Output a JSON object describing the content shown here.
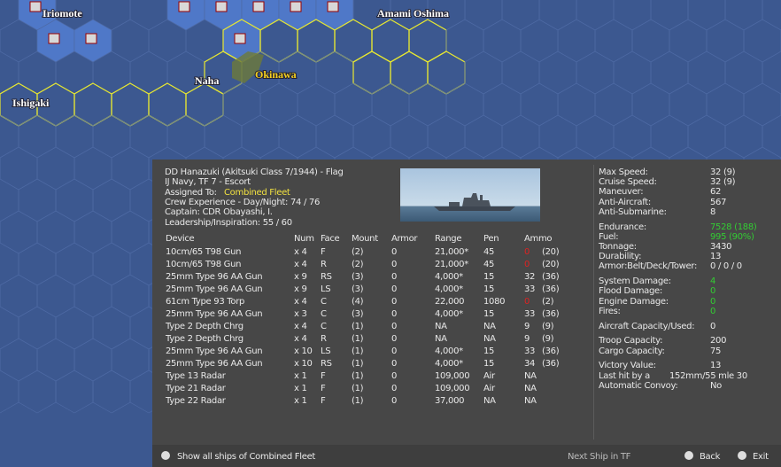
{
  "map": {
    "places": [
      "Iriomote",
      "Amami Oshima",
      "Naha",
      "Okinawa",
      "Ishigaki"
    ]
  },
  "ship": {
    "lines": [
      "DD Hanazuki (Akitsuki Class 7/1944)  - Flag",
      "IJ Navy, TF 7 - Escort"
    ],
    "assigned_label": "Assigned To:",
    "assigned_value": "Combined Fleet",
    "more_lines": [
      "Crew Experience - Day/Night: 74 / 76",
      "Captain: CDR Obayashi, I.",
      "Leadership/Inspiration: 55 / 60"
    ]
  },
  "table": {
    "headers": [
      "Device",
      "Num",
      "Face",
      "Mount",
      "Armor",
      "Range",
      "Pen",
      "Ammo"
    ],
    "rows": [
      [
        "10cm/65 T98 Gun",
        "x 4",
        "F",
        "(2)",
        "0",
        "21,000*",
        "45",
        "0",
        "(20)"
      ],
      [
        "10cm/65 T98 Gun",
        "x 4",
        "R",
        "(2)",
        "0",
        "21,000*",
        "45",
        "0",
        "(20)"
      ],
      [
        "25mm Type 96 AA Gun",
        "x 9",
        "RS",
        "(3)",
        "0",
        "4,000*",
        "15",
        "32",
        "(36)"
      ],
      [
        "25mm Type 96 AA Gun",
        "x 9",
        "LS",
        "(3)",
        "0",
        "4,000*",
        "15",
        "33",
        "(36)"
      ],
      [
        "61cm Type 93 Torp",
        "x 4",
        "C",
        "(4)",
        "0",
        "22,000",
        "1080",
        "0",
        "(2)"
      ],
      [
        "25mm Type 96 AA Gun",
        "x 3",
        "C",
        "(3)",
        "0",
        "4,000*",
        "15",
        "33",
        "(36)"
      ],
      [
        "Type 2 Depth Chrg",
        "x 4",
        "C",
        "(1)",
        "0",
        "NA",
        "NA",
        "9",
        "(9)"
      ],
      [
        "Type 2 Depth Chrg",
        "x 4",
        "R",
        "(1)",
        "0",
        "NA",
        "NA",
        "9",
        "(9)"
      ],
      [
        "25mm Type 96 AA Gun",
        "x 10",
        "LS",
        "(1)",
        "0",
        "4,000*",
        "15",
        "33",
        "(36)"
      ],
      [
        "25mm Type 96 AA Gun",
        "x 10",
        "RS",
        "(1)",
        "0",
        "4,000*",
        "15",
        "34",
        "(36)"
      ],
      [
        "Type 13 Radar",
        "x 1",
        "F",
        "(1)",
        "0",
        "109,000",
        "Air",
        "NA"
      ],
      [
        "Type 21 Radar",
        "x 1",
        "F",
        "(1)",
        "0",
        "109,000",
        "Air",
        "NA"
      ],
      [
        "Type 22 Radar",
        "x 1",
        "F",
        "(1)",
        "0",
        "37,000",
        "NA",
        "NA"
      ]
    ]
  },
  "stats": [
    [
      {
        "label": "Max Speed:",
        "value": "32 (9)"
      },
      {
        "label": "Cruise Speed:",
        "value": "32 (9)"
      },
      {
        "label": "Maneuver:",
        "value": "62"
      },
      {
        "label": "Anti-Aircraft:",
        "value": "567"
      },
      {
        "label": "Anti-Submarine:",
        "value": "8"
      }
    ],
    [
      {
        "label": "Endurance:",
        "value": "7528 (188)",
        "color": "#3c3"
      },
      {
        "label": "Fuel:",
        "value": "995 (90%)",
        "color": "#3c3"
      },
      {
        "label": "Tonnage:",
        "value": "3430"
      },
      {
        "label": "Durability:",
        "value": "13"
      },
      {
        "label": "Armor:Belt/Deck/Tower:",
        "value": "0 / 0 / 0"
      }
    ],
    [
      {
        "label": "System Damage:",
        "value": "4",
        "color": "#3c3"
      },
      {
        "label": "Flood Damage:",
        "value": "0",
        "color": "#3c3"
      },
      {
        "label": "Engine Damage:",
        "value": "0",
        "color": "#3c3"
      },
      {
        "label": "Fires:",
        "value": "0",
        "color": "#3c3"
      }
    ],
    [
      {
        "label": "Aircraft Capacity/Used:",
        "value": "0"
      }
    ],
    [
      {
        "label": "Troop Capacity:",
        "value": "200"
      },
      {
        "label": "Cargo Capacity:",
        "value": "75"
      }
    ],
    [
      {
        "label": "Victory Value:",
        "value": "13"
      },
      {
        "label": "Last hit by a",
        "value": "152mm/55 mle 30"
      },
      {
        "label": "Automatic Convoy:",
        "value": "No"
      }
    ]
  ],
  "footer": {
    "show_all": "Show all ships of Combined Fleet",
    "next": "Next Ship in TF",
    "back": "Back",
    "exit": "Exit"
  }
}
